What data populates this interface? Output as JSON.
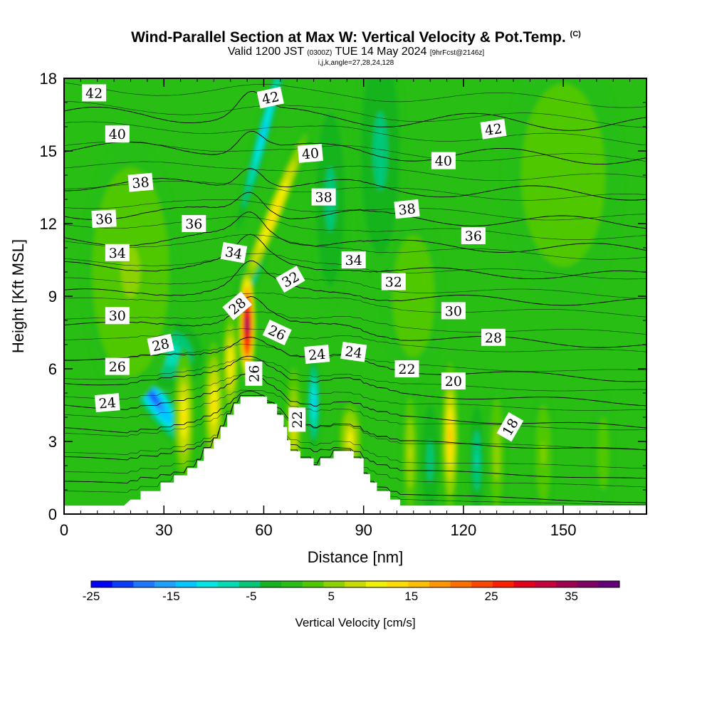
{
  "title": {
    "main": "Wind-Parallel Section at Max W: Vertical Velocity & Pot.Temp.",
    "main_mark": "(C)",
    "valid_prefix": "Valid 1200 JST",
    "valid_zulu": "(0300Z)",
    "valid_date": "TUE 14 May 2024",
    "forecast_tag": "[9hrFcst@2146z]",
    "params": "i,j,k,angle=27,28,24,128"
  },
  "chart_data": {
    "type": "heatmap",
    "xlabel": "Distance [nm]",
    "ylabel": "Height [Kft MSL]",
    "xlim": [
      0,
      175
    ],
    "ylim": [
      0,
      18
    ],
    "x_ticks": [
      0,
      30,
      60,
      90,
      120,
      150
    ],
    "y_ticks": [
      0,
      3,
      6,
      9,
      12,
      15,
      18
    ],
    "colorbar": {
      "title": "Vertical Velocity [cm/s]",
      "range": [
        -25,
        41
      ],
      "tick_values": [
        -25,
        -15,
        -5,
        5,
        15,
        25,
        35
      ],
      "colors": [
        "#0000ff",
        "#0a3cff",
        "#1e78ff",
        "#1ea0ff",
        "#00c8ff",
        "#00e6e6",
        "#00dcb4",
        "#00c878",
        "#14b41e",
        "#28be14",
        "#50c800",
        "#8cd200",
        "#c8dc00",
        "#f0f000",
        "#ffdc00",
        "#ffbe00",
        "#ff9600",
        "#ff6e00",
        "#ff4600",
        "#ff1e00",
        "#e6001e",
        "#c8003c",
        "#a00050",
        "#800064",
        "#640078"
      ]
    },
    "terrain": [
      [
        0,
        0.35
      ],
      [
        18,
        0.35
      ],
      [
        20,
        0.6
      ],
      [
        23,
        0.6
      ],
      [
        23,
        0.95
      ],
      [
        29,
        0.95
      ],
      [
        29,
        1.3
      ],
      [
        33,
        1.3
      ],
      [
        33,
        1.6
      ],
      [
        37,
        1.6
      ],
      [
        37,
        1.9
      ],
      [
        40,
        1.9
      ],
      [
        40,
        2.2
      ],
      [
        42,
        2.2
      ],
      [
        42,
        2.7
      ],
      [
        45,
        2.7
      ],
      [
        45,
        3.1
      ],
      [
        47,
        3.1
      ],
      [
        47,
        3.6
      ],
      [
        49,
        3.6
      ],
      [
        49,
        4.1
      ],
      [
        51,
        4.1
      ],
      [
        51,
        4.55
      ],
      [
        53,
        4.55
      ],
      [
        53,
        4.85
      ],
      [
        61,
        4.85
      ],
      [
        61,
        4.55
      ],
      [
        64,
        4.55
      ],
      [
        64,
        4.1
      ],
      [
        66,
        4.1
      ],
      [
        66,
        3.6
      ],
      [
        67,
        3.6
      ],
      [
        67,
        3.05
      ],
      [
        68,
        3.05
      ],
      [
        68,
        2.6
      ],
      [
        71,
        2.6
      ],
      [
        71,
        2.3
      ],
      [
        75,
        2.3
      ],
      [
        75,
        2.0
      ],
      [
        77,
        2.0
      ],
      [
        77,
        2.3
      ],
      [
        81,
        2.3
      ],
      [
        81,
        2.6
      ],
      [
        87,
        2.6
      ],
      [
        87,
        2.3
      ],
      [
        90,
        2.3
      ],
      [
        90,
        1.65
      ],
      [
        92,
        1.65
      ],
      [
        92,
        1.3
      ],
      [
        94,
        1.3
      ],
      [
        94,
        0.95
      ],
      [
        98,
        0.95
      ],
      [
        98,
        0.6
      ],
      [
        101,
        0.6
      ],
      [
        101,
        0.35
      ],
      [
        175,
        0.35
      ]
    ],
    "w_centers": [
      {
        "x": 27,
        "y": 4.8,
        "w": -20,
        "sx": 2.4,
        "sy": 1.4,
        "rot": -35
      },
      {
        "x": 32,
        "y": 6.6,
        "w": -9,
        "sx": 6,
        "sy": 0.9,
        "rot": -25
      },
      {
        "x": 57,
        "y": 10.3,
        "w": -18,
        "sx": 1.6,
        "sy": 1.2,
        "rot": 20
      },
      {
        "x": 60,
        "y": 15.8,
        "w": -12,
        "sx": 1.2,
        "sy": 2.6,
        "rot": 15
      },
      {
        "x": 63,
        "y": 12.4,
        "w": 14,
        "sx": 1.4,
        "sy": 2.2,
        "rot": 22
      },
      {
        "x": 55,
        "y": 7.8,
        "w": 38,
        "sx": 1.4,
        "sy": 1.3,
        "rot": 0
      },
      {
        "x": 50,
        "y": 6.2,
        "w": 13,
        "sx": 1.5,
        "sy": 1.3,
        "rot": 0
      },
      {
        "x": 36,
        "y": 4,
        "w": 12,
        "sx": 1.8,
        "sy": 1.6,
        "rot": 0
      },
      {
        "x": 45,
        "y": 4.5,
        "w": 12,
        "sx": 1.8,
        "sy": 1.6,
        "rot": 0
      },
      {
        "x": 69,
        "y": 3.6,
        "w": 10,
        "sx": 1.4,
        "sy": 1.5,
        "rot": 0
      },
      {
        "x": 75,
        "y": 4.6,
        "w": -12,
        "sx": 1.2,
        "sy": 1.2,
        "rot": 0
      },
      {
        "x": 86,
        "y": 3.1,
        "w": 11,
        "sx": 2,
        "sy": 0.9,
        "rot": 0
      },
      {
        "x": 116,
        "y": 3.2,
        "w": 15,
        "sx": 1.4,
        "sy": 1.7,
        "rot": 0
      },
      {
        "x": 110,
        "y": 2.2,
        "w": -5,
        "sx": 1.8,
        "sy": 1.6,
        "rot": 0
      },
      {
        "x": 104,
        "y": 2.5,
        "w": 7,
        "sx": 1.4,
        "sy": 1.6,
        "rot": 0
      },
      {
        "x": 124,
        "y": 2.2,
        "w": -7,
        "sx": 1.4,
        "sy": 1.4,
        "rot": 0
      },
      {
        "x": 130,
        "y": 2.5,
        "w": 6,
        "sx": 1.4,
        "sy": 1.6,
        "rot": 0
      },
      {
        "x": 144,
        "y": 2.5,
        "w": 5,
        "sx": 1.6,
        "sy": 1.4,
        "rot": 0
      },
      {
        "x": 162,
        "y": 2.5,
        "w": 3,
        "sx": 1.6,
        "sy": 1.4,
        "rot": 0
      },
      {
        "x": 20,
        "y": 10,
        "w": 5,
        "sx": 8,
        "sy": 3,
        "rot": 0
      },
      {
        "x": 105,
        "y": 9,
        "w": 4,
        "sx": 5,
        "sy": 2,
        "rot": 0
      },
      {
        "x": 150,
        "y": 14,
        "w": 4,
        "sx": 10,
        "sy": 3,
        "rot": 0
      },
      {
        "x": 95,
        "y": 15,
        "w": -5,
        "sx": 4,
        "sy": 3,
        "rot": 0
      },
      {
        "x": 80,
        "y": 13,
        "w": -5,
        "sx": 3,
        "sy": 2.5,
        "rot": 0
      }
    ],
    "theta_levels": [
      18,
      20,
      22,
      24,
      26,
      28,
      30,
      32,
      34,
      36,
      38,
      40,
      42,
      44
    ],
    "theta_base_heights": [
      1.2,
      2.2,
      3.4,
      4.4,
      5.4,
      6.4,
      7.8,
      9.1,
      10.2,
      11.3,
      12.4,
      13.6,
      15.1,
      16.5
    ],
    "contour_labels": [
      {
        "text": "42",
        "x": 9,
        "y": 17.4,
        "rot": 0
      },
      {
        "text": "42",
        "x": 62,
        "y": 17.2,
        "rot": -12
      },
      {
        "text": "42",
        "x": 129,
        "y": 15.9,
        "rot": -8
      },
      {
        "text": "40",
        "x": 16,
        "y": 15.7,
        "rot": 0
      },
      {
        "text": "40",
        "x": 74,
        "y": 14.9,
        "rot": -5
      },
      {
        "text": "40",
        "x": 114,
        "y": 14.6,
        "rot": 0
      },
      {
        "text": "38",
        "x": 23,
        "y": 13.7,
        "rot": -5
      },
      {
        "text": "38",
        "x": 78,
        "y": 13.1,
        "rot": 0
      },
      {
        "text": "38",
        "x": 103,
        "y": 12.6,
        "rot": -6
      },
      {
        "text": "36",
        "x": 12,
        "y": 12.2,
        "rot": -3
      },
      {
        "text": "36",
        "x": 39,
        "y": 12.0,
        "rot": 0
      },
      {
        "text": "36",
        "x": 123,
        "y": 11.5,
        "rot": 0
      },
      {
        "text": "34",
        "x": 16,
        "y": 10.8,
        "rot": 0
      },
      {
        "text": "34",
        "x": 51,
        "y": 10.8,
        "rot": 10
      },
      {
        "text": "34",
        "x": 87,
        "y": 10.5,
        "rot": 0
      },
      {
        "text": "32",
        "x": 68,
        "y": 9.7,
        "rot": -30
      },
      {
        "text": "32",
        "x": 99,
        "y": 9.6,
        "rot": 0
      },
      {
        "text": "30",
        "x": 16,
        "y": 8.2,
        "rot": 0
      },
      {
        "text": "30",
        "x": 117,
        "y": 8.4,
        "rot": 0
      },
      {
        "text": "28",
        "x": 52,
        "y": 8.6,
        "rot": -40
      },
      {
        "text": "28",
        "x": 129,
        "y": 7.3,
        "rot": 0
      },
      {
        "text": "28",
        "x": 29,
        "y": 7.0,
        "rot": -12
      },
      {
        "text": "26",
        "x": 16,
        "y": 6.1,
        "rot": 0
      },
      {
        "text": "26",
        "x": 64,
        "y": 7.5,
        "rot": 25
      },
      {
        "text": "26",
        "x": 57,
        "y": 5.8,
        "rot": -90
      },
      {
        "text": "24",
        "x": 13,
        "y": 4.6,
        "rot": -5
      },
      {
        "text": "24",
        "x": 76,
        "y": 6.6,
        "rot": -5
      },
      {
        "text": "24",
        "x": 87,
        "y": 6.7,
        "rot": 8
      },
      {
        "text": "22",
        "x": 103,
        "y": 6.0,
        "rot": 0
      },
      {
        "text": "22",
        "x": 70,
        "y": 3.9,
        "rot": -90
      },
      {
        "text": "20",
        "x": 117,
        "y": 5.5,
        "rot": 0
      },
      {
        "text": "18",
        "x": 134,
        "y": 3.6,
        "rot": -60
      }
    ]
  }
}
